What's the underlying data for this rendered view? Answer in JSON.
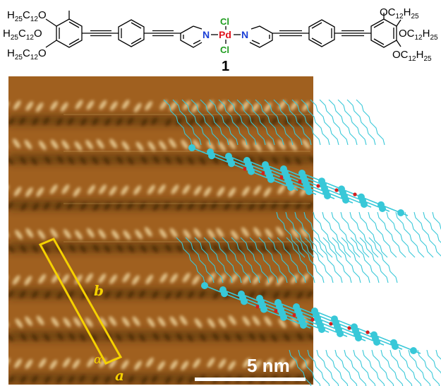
{
  "structure": {
    "left_substituents": [
      "H25C12O",
      "H25C12O",
      "H25C12O"
    ],
    "right_substituents": [
      "OC12H25",
      "OC12H25",
      "OC12H25"
    ],
    "metal": "Pd",
    "ligand_atom": "N",
    "halide": "Cl",
    "compound_label": "1"
  },
  "stm_image": {
    "unit_cell": {
      "a": "a",
      "b": "b",
      "alpha": "α"
    },
    "scale_bar": {
      "label": "5 nm"
    },
    "colors": {
      "background": "#a0601f",
      "bright_rows": "#f0d7a0",
      "dark_rows": "#3a1e08",
      "unit_cell": "#f5d100",
      "model": "#38c8d8",
      "model_center": "#d42020"
    }
  }
}
